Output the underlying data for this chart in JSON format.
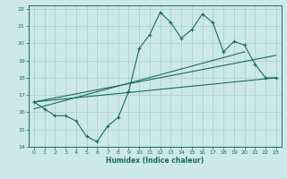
{
  "xlabel": "Humidex (Indice chaleur)",
  "bg_color": "#cce8e8",
  "grid_color": "#aacccc",
  "line_color": "#1a6b5a",
  "xlim": [
    -0.5,
    23.5
  ],
  "ylim": [
    14,
    22.2
  ],
  "xticks": [
    0,
    1,
    2,
    3,
    4,
    5,
    6,
    7,
    8,
    9,
    10,
    11,
    12,
    13,
    14,
    15,
    16,
    17,
    18,
    19,
    20,
    21,
    22,
    23
  ],
  "yticks": [
    14,
    15,
    16,
    17,
    18,
    19,
    20,
    21,
    22
  ],
  "main_x": [
    0,
    1,
    2,
    3,
    4,
    5,
    6,
    7,
    8,
    9,
    10,
    11,
    12,
    13,
    14,
    15,
    16,
    17,
    18,
    19,
    20,
    21,
    22,
    23
  ],
  "main_y": [
    16.6,
    16.2,
    15.8,
    15.8,
    15.5,
    14.6,
    14.3,
    15.2,
    15.7,
    17.2,
    19.7,
    20.5,
    21.8,
    21.2,
    20.3,
    20.8,
    21.7,
    21.2,
    19.5,
    20.1,
    19.9,
    18.8,
    18.0,
    18.0
  ],
  "line1_x": [
    0,
    23
  ],
  "line1_y": [
    16.6,
    18.0
  ],
  "line2_x": [
    0,
    23
  ],
  "line2_y": [
    16.6,
    19.3
  ],
  "line3_x": [
    0,
    20
  ],
  "line3_y": [
    16.2,
    19.5
  ]
}
